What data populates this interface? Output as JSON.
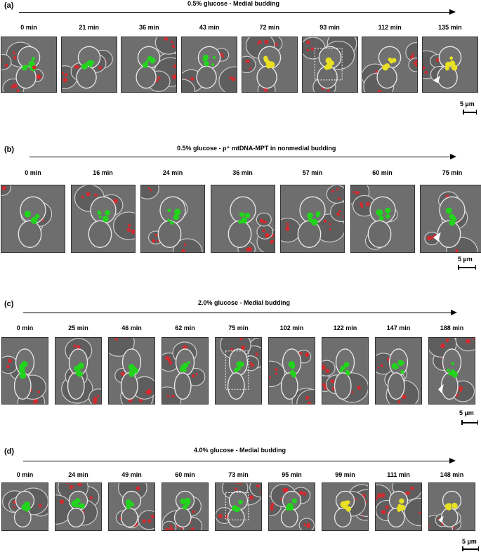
{
  "panels": [
    {
      "label": "(a)",
      "title": "0.5% glucose - Medial budding",
      "times": [
        "0 min",
        "21 min",
        "36 min",
        "43 min",
        "72 min",
        "93 min",
        "112 min",
        "135 min"
      ],
      "scale": "5 µm",
      "frames": [
        "red-green",
        "green",
        "green-yellow",
        "green-yellow",
        "yellow",
        "yellow-box",
        "yellow",
        "arrow-yellow"
      ]
    },
    {
      "label": "(b)",
      "title": "0.5% glucose - ρ⁺ mtDNA-MPT in nonmedial budding",
      "times": [
        "0 min",
        "16 min",
        "24 min",
        "36 min",
        "57 min",
        "60 min",
        "75 min"
      ],
      "scale": "5 µm",
      "frames": [
        "green",
        "green",
        "green",
        "green",
        "green",
        "green",
        "arrow-green"
      ]
    },
    {
      "label": "(c)",
      "title": "2.0% glucose - Medial budding",
      "times": [
        "0 min",
        "25 min",
        "46 min",
        "62 min",
        "75 min",
        "102 min",
        "122 min",
        "147 min",
        "188 min"
      ],
      "scale": "5 µm",
      "frames": [
        "green",
        "green",
        "green",
        "green",
        "green-box",
        "green",
        "green",
        "green",
        "arrow-green"
      ]
    },
    {
      "label": "(d)",
      "title": "4.0% glucose - Medial budding",
      "times": [
        "0 min",
        "24 min",
        "49 min",
        "60 min",
        "73 min",
        "95 min",
        "99 min",
        "111 min",
        "148 min"
      ],
      "scale": "5 µm",
      "frames": [
        "green",
        "green",
        "green",
        "green",
        "green-box",
        "green",
        "yellow",
        "yellow",
        "arrow-yellow"
      ]
    }
  ]
}
